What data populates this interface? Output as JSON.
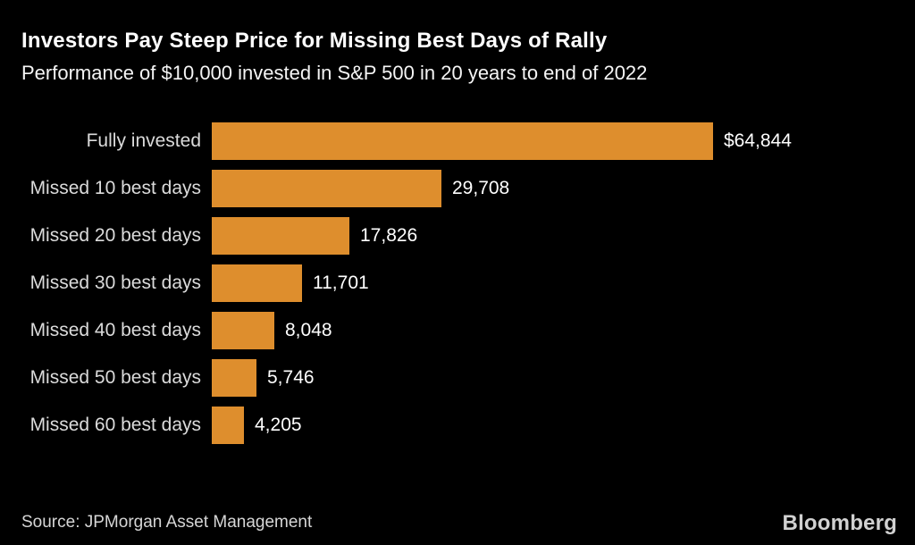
{
  "title": "Investors Pay Steep Price for Missing Best Days of Rally",
  "subtitle": "Performance of $10,000 invested in S&P 500 in 20 years to end of 2022",
  "source": "Source: JPMorgan Asset Management",
  "brand": "Bloomberg",
  "colors": {
    "background": "#000000",
    "bar": "#DE8E2D",
    "title": "#FFFFFF",
    "category_label": "#DBDBDB",
    "value_label": "#FFFFFF",
    "source": "#D6D6D6",
    "brand": "#D1D1D1"
  },
  "chart_data": {
    "type": "bar",
    "orientation": "horizontal",
    "title": "Investors Pay Steep Price for Missing Best Days of Rally",
    "subtitle": "Performance of $10,000 invested in S&P 500 in 20 years to end of 2022",
    "categories": [
      "Fully invested",
      "Missed 10 best days",
      "Missed 20 best days",
      "Missed 30 best days",
      "Missed 40 best days",
      "Missed 50 best days",
      "Missed 60 best days"
    ],
    "values": [
      64844,
      29708,
      17826,
      11701,
      8048,
      5746,
      4205
    ],
    "value_labels": [
      "$64,844",
      "29,708",
      "17,826",
      "11,701",
      "8,048",
      "5,746",
      "4,205"
    ],
    "xlim": [
      0,
      64844
    ],
    "grid": false,
    "legend": false,
    "bar_color": "#DE8E2D"
  }
}
